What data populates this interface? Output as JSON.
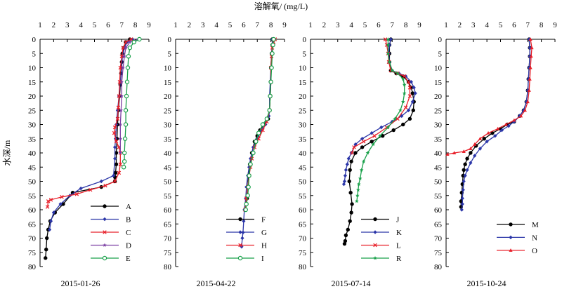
{
  "figure": {
    "xlabel": "溶解氧/ (mg/L)",
    "ylabel": "水深/m"
  },
  "chart_data": [
    {
      "type": "line",
      "date": "2015-01-26",
      "xlim": [
        1,
        9
      ],
      "ylim": [
        0,
        80
      ],
      "x_ticks": [
        "1",
        "2",
        "3",
        "4",
        "5",
        "6",
        "7",
        "8",
        "9"
      ],
      "y_ticks": [
        "0",
        "5",
        "10",
        "15",
        "20",
        "25",
        "30",
        "35",
        "40",
        "45",
        "50",
        "55",
        "60",
        "65",
        "70",
        "75",
        "80"
      ],
      "series": [
        {
          "name": "A",
          "color": "#000000",
          "marker": "circle",
          "x": [
            7.6,
            7.3,
            7.15,
            7.05,
            7.0,
            6.95,
            6.9,
            6.85,
            6.75,
            6.7,
            6.65,
            6.6,
            6.6,
            6.55,
            6.5,
            6.5,
            5.5,
            3.4,
            2.7,
            2.1,
            1.75,
            1.6,
            1.5,
            1.45,
            1.4
          ],
          "y": [
            0,
            1,
            3,
            5,
            8,
            12,
            16,
            20,
            25,
            30,
            35,
            40,
            44,
            47,
            48.5,
            50,
            52,
            54,
            58,
            61,
            64,
            67,
            70,
            74,
            77
          ]
        },
        {
          "name": "B",
          "color": "#2b36a8",
          "marker": "diamond",
          "x": [
            7.8,
            7.4,
            7.2,
            7.05,
            7.0,
            6.9,
            6.8,
            6.7,
            6.6,
            6.55,
            6.5,
            6.5,
            6.4,
            5.5,
            4.0,
            3.2,
            2.5,
            2.0,
            1.8,
            1.7
          ],
          "y": [
            0,
            1,
            3,
            6,
            10,
            15,
            20,
            25,
            30,
            35,
            38,
            42,
            48,
            50,
            52.5,
            55,
            58,
            61,
            64,
            67
          ]
        },
        {
          "name": "C",
          "color": "#e8202a",
          "marker": "x",
          "x": [
            7.7,
            7.3,
            7.1,
            7.0,
            6.9,
            6.85,
            6.8,
            6.75,
            6.7,
            6.5,
            6.45,
            6.6,
            6.8,
            6.9,
            6.9,
            6.8,
            6.5,
            5.8,
            4.7,
            3.7,
            2.6,
            1.8,
            1.6,
            1.55
          ],
          "y": [
            0,
            1,
            3,
            6,
            10,
            15,
            20,
            24,
            28,
            31,
            33,
            36,
            38,
            40,
            44,
            47,
            50,
            51.5,
            53,
            54.5,
            55.5,
            56.5,
            57,
            59
          ]
        },
        {
          "name": "D",
          "color": "#7b3fa3",
          "marker": "star",
          "x": [
            8.2,
            7.6,
            7.3,
            7.2,
            7.1,
            7.0,
            7.0,
            6.95,
            6.9,
            6.9,
            6.9
          ],
          "y": [
            0,
            1,
            3,
            6,
            10,
            15,
            20,
            25,
            30,
            35,
            40
          ]
        },
        {
          "name": "E",
          "color": "#19a04a",
          "marker": "circle-open",
          "x": [
            8.3,
            7.9,
            7.6,
            7.5,
            7.45,
            7.4,
            7.35,
            7.3,
            7.3,
            7.25,
            7.2,
            7.2,
            7.15
          ],
          "y": [
            0,
            1,
            3,
            6,
            10,
            15,
            20,
            25,
            30,
            35,
            40,
            43,
            45
          ]
        }
      ],
      "legend": [
        "A",
        "B",
        "C",
        "D",
        "E"
      ]
    },
    {
      "type": "line",
      "date": "2015-04-22",
      "xlim": [
        1,
        9
      ],
      "ylim": [
        0,
        80
      ],
      "x_ticks": [
        "1",
        "2",
        "3",
        "4",
        "5",
        "6",
        "7",
        "8",
        "9"
      ],
      "y_ticks": [
        "0",
        "5",
        "10",
        "15",
        "20",
        "25",
        "30",
        "35",
        "40",
        "45",
        "50",
        "55",
        "60",
        "65",
        "70",
        "75",
        "80"
      ],
      "series": [
        {
          "name": "F",
          "color": "#000000",
          "marker": "circle",
          "x": [
            8.1,
            8.1,
            8.05,
            8.0,
            8.0,
            7.95,
            7.9,
            7.8,
            7.5,
            7.2,
            7.0,
            6.8,
            6.6,
            6.45,
            6.35,
            6.3,
            6.25,
            6.1
          ],
          "y": [
            0,
            2,
            5,
            10,
            15,
            20,
            25,
            28,
            30,
            32,
            34,
            36,
            40,
            44,
            48,
            52,
            56,
            60
          ]
        },
        {
          "name": "G",
          "color": "#2b36a8",
          "marker": "diamond",
          "x": [
            8.1,
            8.1,
            8.05,
            8.0,
            7.95,
            7.9,
            7.9,
            7.85,
            7.6,
            7.3,
            7.0,
            6.7,
            6.5,
            6.4,
            6.3,
            6.2,
            6.15,
            6.05,
            6.0,
            5.95,
            5.9,
            5.85
          ],
          "y": [
            0,
            2,
            5,
            10,
            15,
            20,
            25,
            27,
            30,
            32,
            35,
            38,
            42,
            45,
            48,
            52,
            56,
            60,
            64,
            68,
            70,
            73
          ]
        },
        {
          "name": "H",
          "color": "#e8202a",
          "marker": "x",
          "x": [
            8.3,
            8.2,
            8.1,
            8.05,
            8.0,
            8.0,
            7.95,
            7.9,
            7.7,
            7.4,
            7.1,
            6.8,
            6.6,
            6.5,
            6.4,
            6.3,
            6.2,
            6.1
          ],
          "y": [
            0,
            1,
            3,
            6,
            10,
            15,
            20,
            25,
            29,
            32,
            35,
            38,
            42,
            45,
            48,
            52,
            56,
            60
          ]
        },
        {
          "name": "I",
          "color": "#19a04a",
          "marker": "circle-open",
          "x": [
            8.2,
            8.15,
            8.1,
            8.05,
            8.0,
            7.95,
            7.9,
            7.7,
            7.4,
            7.1,
            6.9,
            6.7,
            6.5,
            6.4,
            6.35,
            6.3,
            6.2,
            6.15
          ],
          "y": [
            0,
            2,
            5,
            10,
            15,
            20,
            25,
            28,
            30,
            33,
            36,
            40,
            44,
            48,
            52,
            55,
            58,
            60
          ]
        }
      ],
      "legend": [
        "F",
        "G",
        "H",
        "I"
      ]
    },
    {
      "type": "line",
      "date": "2015-07-14",
      "xlim": [
        1,
        9
      ],
      "ylim": [
        0,
        80
      ],
      "x_ticks": [
        "1",
        "2",
        "3",
        "4",
        "5",
        "6",
        "7",
        "8",
        "9"
      ],
      "y_ticks": [
        "0",
        "5",
        "10",
        "15",
        "20",
        "25",
        "30",
        "35",
        "40",
        "45",
        "50",
        "55",
        "60",
        "65",
        "70",
        "75",
        "80"
      ],
      "series": [
        {
          "name": "J",
          "color": "#000000",
          "marker": "circle",
          "x": [
            6.9,
            6.8,
            6.8,
            6.8,
            6.9,
            7.3,
            7.8,
            8.2,
            8.4,
            8.5,
            8.6,
            8.55,
            8.3,
            7.8,
            7.1,
            6.3,
            5.5,
            4.8,
            4.3,
            4.0,
            3.9,
            3.85,
            3.95,
            4.05,
            4.0,
            3.9,
            3.75,
            3.6,
            3.55,
            3.5
          ],
          "y": [
            0,
            2,
            5,
            8,
            11,
            12,
            13,
            15,
            17,
            19,
            22,
            25,
            28,
            30,
            32,
            34,
            36,
            38,
            40,
            43,
            46,
            50,
            54,
            58,
            61,
            64,
            67,
            69,
            71,
            72
          ]
        },
        {
          "name": "K",
          "color": "#2b36a8",
          "marker": "diamond",
          "x": [
            6.9,
            6.8,
            6.75,
            6.8,
            7.0,
            7.5,
            8.0,
            8.4,
            8.6,
            8.7,
            8.5,
            8.2,
            7.7,
            7.0,
            6.2,
            5.5,
            4.8,
            4.3,
            4.0,
            3.8,
            3.7,
            3.6,
            3.55,
            3.5,
            3.45
          ],
          "y": [
            0,
            2,
            5,
            8,
            11,
            12,
            13,
            15,
            17,
            19,
            22,
            25,
            27,
            29,
            31,
            33,
            35,
            37,
            40,
            42,
            44,
            46,
            48,
            50,
            51
          ]
        },
        {
          "name": "L",
          "color": "#e8202a",
          "marker": "x",
          "x": [
            6.5,
            6.6,
            6.7,
            6.75,
            6.9,
            7.4,
            7.9,
            8.2,
            8.3,
            8.3,
            8.0,
            7.4,
            6.6,
            5.7,
            4.9,
            4.2,
            4.05
          ],
          "y": [
            0,
            2,
            5,
            8,
            11,
            12,
            13,
            15,
            17,
            20,
            24,
            28,
            31,
            34,
            36,
            38,
            40
          ]
        },
        {
          "name": "R",
          "color": "#19a04a",
          "marker": "star",
          "x": [
            6.7,
            6.7,
            6.7,
            6.8,
            7.0,
            7.4,
            7.8,
            7.9,
            7.9,
            7.8,
            7.6,
            7.2,
            6.7,
            6.1,
            5.6,
            5.2,
            4.9,
            4.75,
            4.65,
            4.55,
            4.5,
            4.45,
            4.4
          ],
          "y": [
            0,
            2,
            5,
            8,
            11,
            12,
            14,
            16,
            19,
            22,
            25,
            28,
            31,
            34,
            37,
            40,
            43,
            46,
            49,
            51,
            53,
            55,
            57
          ]
        }
      ],
      "legend": [
        "J",
        "K",
        "L",
        "R"
      ]
    },
    {
      "type": "line",
      "date": "2015-10-24",
      "xlim": [
        1,
        9
      ],
      "ylim": [
        0,
        80
      ],
      "x_ticks": [
        "1",
        "2",
        "3",
        "4",
        "5",
        "6",
        "7",
        "8",
        "9"
      ],
      "y_ticks": [
        "0",
        "5",
        "10",
        "15",
        "20",
        "25",
        "30",
        "35",
        "40",
        "45",
        "50",
        "55",
        "60",
        "65",
        "70",
        "75",
        "80"
      ],
      "series": [
        {
          "name": "M",
          "color": "#000000",
          "marker": "circle",
          "x": [
            7.1,
            7.15,
            7.15,
            7.1,
            7.05,
            7.0,
            6.9,
            6.7,
            6.4,
            6.0,
            5.5,
            5.0,
            4.4,
            3.8,
            3.2,
            2.8,
            2.55,
            2.4,
            2.3,
            2.25,
            2.2,
            2.15,
            2.1,
            2.1
          ],
          "y": [
            0,
            3,
            6,
            10,
            14,
            18,
            22,
            25,
            27,
            29,
            30,
            31.5,
            33,
            35,
            37.5,
            40,
            42,
            44,
            46,
            48,
            51,
            54,
            57,
            59
          ]
        },
        {
          "name": "N",
          "color": "#2b36a8",
          "marker": "diamond",
          "x": [
            7.1,
            7.15,
            7.15,
            7.1,
            7.05,
            7.0,
            6.9,
            6.7,
            6.4,
            6.0,
            5.6,
            5.1,
            4.6,
            4.0,
            3.5,
            3.1,
            2.8,
            2.55,
            2.4,
            2.3,
            2.25,
            2.2,
            2.2,
            2.15
          ],
          "y": [
            0,
            3,
            6,
            10,
            14,
            18,
            22,
            25,
            27,
            29,
            30.5,
            32,
            34,
            36,
            38.5,
            41,
            43.5,
            46,
            48,
            50,
            53,
            56,
            58,
            60
          ]
        },
        {
          "name": "O",
          "color": "#e8202a",
          "marker": "triangle",
          "x": [
            7.2,
            7.3,
            7.25,
            7.2,
            7.15,
            7.1,
            7.0,
            6.8,
            6.5,
            6.0,
            5.4,
            4.8,
            4.1,
            3.5,
            3.1,
            2.8,
            2.3,
            1.6,
            1.1
          ],
          "y": [
            0,
            3,
            6,
            10,
            14,
            18,
            22,
            25,
            27,
            28.5,
            30,
            31.5,
            33,
            35,
            37,
            38.5,
            39.5,
            40,
            40.5
          ]
        }
      ],
      "legend": [
        "M",
        "N",
        "O"
      ]
    }
  ]
}
